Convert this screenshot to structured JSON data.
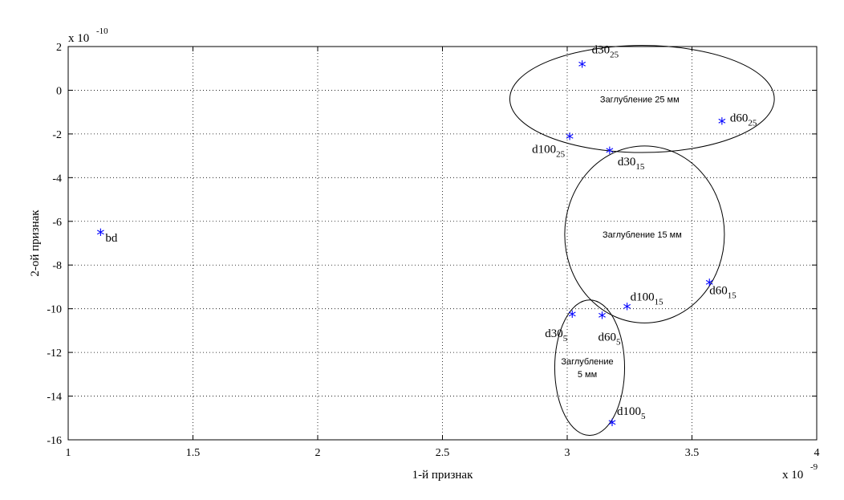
{
  "chart_data": {
    "type": "scatter",
    "xlabel": "1-й признак",
    "ylabel": "2-ой признак",
    "x_exponent": {
      "base": "x 10",
      "power": "-9"
    },
    "y_exponent": {
      "base": "x 10",
      "power": "-10"
    },
    "xlim": [
      1,
      4
    ],
    "ylim": [
      -16,
      2
    ],
    "xticks": [
      1,
      1.5,
      2,
      2.5,
      3,
      3.5,
      4
    ],
    "yticks": [
      2,
      0,
      -2,
      -4,
      -6,
      -8,
      -10,
      -12,
      -14,
      -16
    ],
    "grid": true,
    "marker": "*",
    "marker_color": "#0000ff",
    "points": [
      {
        "x": 1.13,
        "y": -6.6,
        "label": "bd",
        "sub": ""
      },
      {
        "x": 3.06,
        "y": 1.1,
        "label": "d30",
        "sub": "25"
      },
      {
        "x": 3.01,
        "y": -2.2,
        "label": "d100",
        "sub": "25"
      },
      {
        "x": 3.62,
        "y": -1.5,
        "label": "d60",
        "sub": "25"
      },
      {
        "x": 3.17,
        "y": -2.85,
        "label": "d30",
        "sub": "15"
      },
      {
        "x": 3.57,
        "y": -8.9,
        "label": "d60",
        "sub": "15"
      },
      {
        "x": 3.24,
        "y": -10.0,
        "label": "d100",
        "sub": "15"
      },
      {
        "x": 3.02,
        "y": -10.35,
        "label": "d30",
        "sub": "5"
      },
      {
        "x": 3.14,
        "y": -10.4,
        "label": "d60",
        "sub": "5"
      },
      {
        "x": 3.18,
        "y": -15.3,
        "label": "d100",
        "sub": "5"
      }
    ],
    "regions": [
      {
        "cx": 3.3,
        "cy": -0.4,
        "rx": 0.53,
        "ry": 2.45,
        "label_lines": [
          "Заглубление 25 мм"
        ]
      },
      {
        "cx": 3.31,
        "cy": -6.6,
        "rx": 0.32,
        "ry": 4.05,
        "label_lines": [
          "Заглубление 15 мм"
        ]
      },
      {
        "cx": 3.09,
        "cy": -12.7,
        "rx": 0.14,
        "ry": 3.1,
        "label_lines": [
          "Заглубление",
          "5 мм"
        ]
      }
    ]
  }
}
